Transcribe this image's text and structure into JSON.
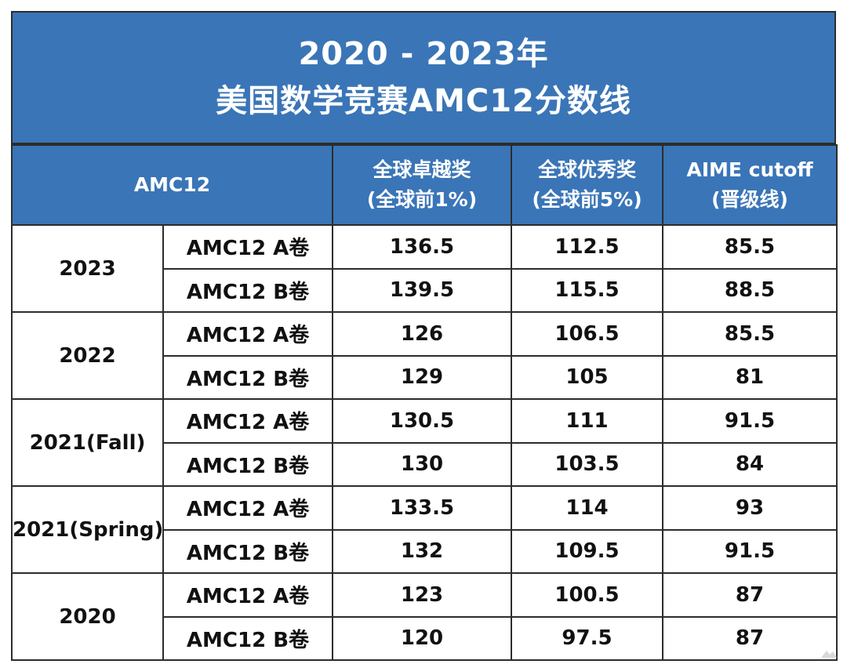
{
  "title": {
    "line1": "2020 - 2023年",
    "line2": "美国数学竞赛AMC12分数线"
  },
  "header": {
    "col1": "AMC12",
    "col2_line1": "全球卓越奖",
    "col2_line2": "(全球前1%)",
    "col3_line1": "全球优秀奖",
    "col3_line2": "(全球前5%)",
    "col4_line1": "AIME cutoff",
    "col4_line2": "(晋级线)"
  },
  "rows": [
    {
      "year": "2023",
      "a": {
        "paper": "AMC12 A卷",
        "top1": "136.5",
        "top5": "112.5",
        "aime": "85.5"
      },
      "b": {
        "paper": "AMC12 B卷",
        "top1": "139.5",
        "top5": "115.5",
        "aime": "88.5"
      }
    },
    {
      "year": "2022",
      "a": {
        "paper": "AMC12 A卷",
        "top1": "126",
        "top5": "106.5",
        "aime": "85.5"
      },
      "b": {
        "paper": "AMC12 B卷",
        "top1": "129",
        "top5": "105",
        "aime": "81"
      }
    },
    {
      "year": "2021(Fall)",
      "a": {
        "paper": "AMC12 A卷",
        "top1": "130.5",
        "top5": "111",
        "aime": "91.5"
      },
      "b": {
        "paper": "AMC12 B卷",
        "top1": "130",
        "top5": "103.5",
        "aime": "84"
      }
    },
    {
      "year": "2021(Spring)",
      "a": {
        "paper": "AMC12 A卷",
        "top1": "133.5",
        "top5": "114",
        "aime": "93"
      },
      "b": {
        "paper": "AMC12 B卷",
        "top1": "132",
        "top5": "109.5",
        "aime": "91.5"
      }
    },
    {
      "year": "2020",
      "a": {
        "paper": "AMC12 A卷",
        "top1": "123",
        "top5": "100.5",
        "aime": "87"
      },
      "b": {
        "paper": "AMC12 B卷",
        "top1": "120",
        "top5": "97.5",
        "aime": "87"
      }
    }
  ],
  "colors": {
    "header_bg": "#3a75b7",
    "header_text": "#ffffff",
    "border": "#2c2c2c",
    "body_text": "#111111"
  }
}
